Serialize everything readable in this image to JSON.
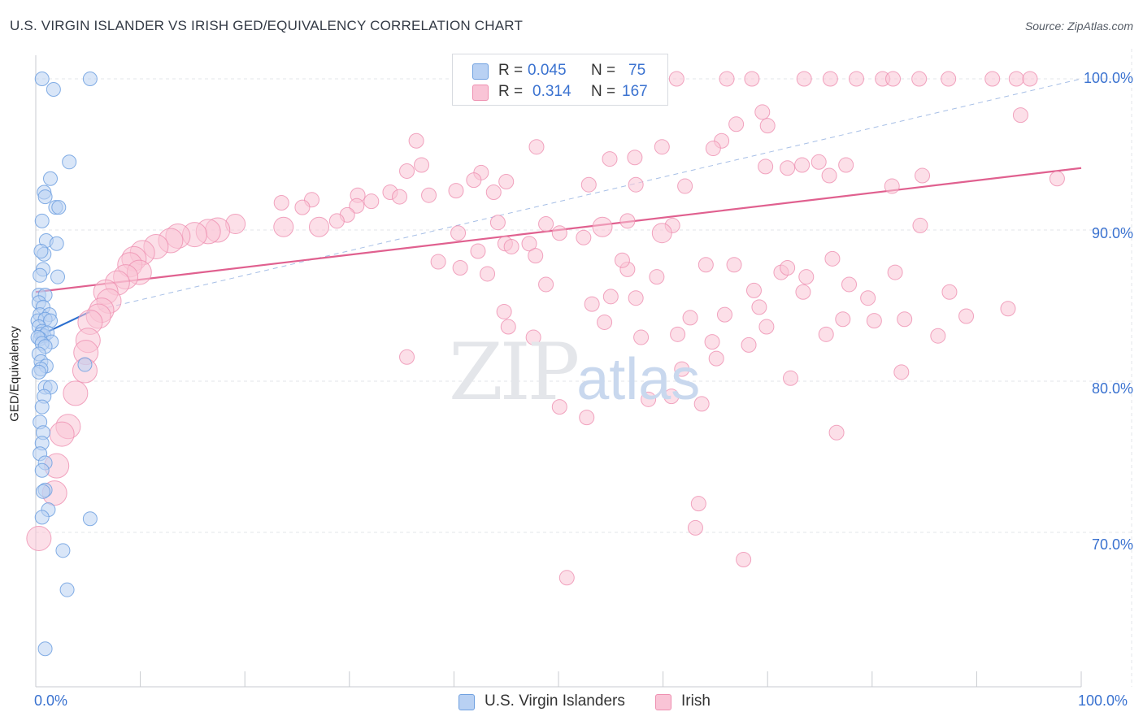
{
  "title": "U.S. VIRGIN ISLANDER VS IRISH GED/EQUIVALENCY CORRELATION CHART",
  "source": "Source: ZipAtlas.com",
  "watermark": {
    "zip": "ZIP",
    "atlas": "atlas"
  },
  "legend_top": [
    {
      "r_label": "R =",
      "r_value": "0.045",
      "n_label": "N =",
      "n_value": "75",
      "color": "#6fa0e0",
      "fill": "#b9d1f3"
    },
    {
      "r_label": "R =",
      "r_value": "0.314",
      "n_label": "N =",
      "n_value": "167",
      "color": "#ee8fb0",
      "fill": "#f9c4d6"
    }
  ],
  "chart_data": {
    "type": "scatter",
    "title": "U.S. VIRGIN ISLANDER VS IRISH GED/EQUIVALENCY CORRELATION CHART",
    "xlabel": "",
    "ylabel": "GED/Equivalency",
    "xlim": [
      0,
      100
    ],
    "ylim": [
      60.5,
      101.5
    ],
    "x_tick_labels": [
      "0.0%",
      "100.0%"
    ],
    "y_ticks": [
      70,
      80,
      90,
      100
    ],
    "y_tick_labels": [
      "70.0%",
      "80.0%",
      "90.0%",
      "100.0%"
    ],
    "grid": true,
    "legend_position": "bottom",
    "series": [
      {
        "name": "U.S. Virgin Islanders",
        "color": "#6fa0e0",
        "fill": "#b9d1f3",
        "trend": {
          "x": [
            0,
            5.2
          ],
          "y": [
            82.9,
            84.6
          ],
          "color": "#2c6fcf"
        },
        "points": [
          [
            0.6,
            100.0
          ],
          [
            5.2,
            100.0
          ],
          [
            1.7,
            99.3
          ],
          [
            3.2,
            94.5
          ],
          [
            1.4,
            93.4
          ],
          [
            0.8,
            92.5
          ],
          [
            0.9,
            92.2
          ],
          [
            1.9,
            91.5
          ],
          [
            2.2,
            91.5
          ],
          [
            0.6,
            90.6
          ],
          [
            1.0,
            89.3
          ],
          [
            2.0,
            89.1
          ],
          [
            0.8,
            88.4
          ],
          [
            0.5,
            88.6
          ],
          [
            0.7,
            87.4
          ],
          [
            0.4,
            87.0
          ],
          [
            2.1,
            86.9
          ],
          [
            0.3,
            85.7
          ],
          [
            0.9,
            85.7
          ],
          [
            0.3,
            85.2
          ],
          [
            0.7,
            84.9
          ],
          [
            0.4,
            84.4
          ],
          [
            1.3,
            84.4
          ],
          [
            0.2,
            84.0
          ],
          [
            0.9,
            84.1
          ],
          [
            1.4,
            84.0
          ],
          [
            0.3,
            83.6
          ],
          [
            0.6,
            83.3
          ],
          [
            0.5,
            83.1
          ],
          [
            0.8,
            83.0
          ],
          [
            1.1,
            83.2
          ],
          [
            0.4,
            82.8
          ],
          [
            0.2,
            82.9
          ],
          [
            1.5,
            82.6
          ],
          [
            0.6,
            82.5
          ],
          [
            0.9,
            82.3
          ],
          [
            0.3,
            81.8
          ],
          [
            0.5,
            81.3
          ],
          [
            1.0,
            81.0
          ],
          [
            4.7,
            81.1
          ],
          [
            0.5,
            80.8
          ],
          [
            0.3,
            80.6
          ],
          [
            0.9,
            79.6
          ],
          [
            1.4,
            79.6
          ],
          [
            0.8,
            79.0
          ],
          [
            0.6,
            78.3
          ],
          [
            0.4,
            77.3
          ],
          [
            0.7,
            76.6
          ],
          [
            0.6,
            75.9
          ],
          [
            0.4,
            75.2
          ],
          [
            0.9,
            74.6
          ],
          [
            0.6,
            74.1
          ],
          [
            0.9,
            72.8
          ],
          [
            0.7,
            72.7
          ],
          [
            1.2,
            71.5
          ],
          [
            0.6,
            71.0
          ],
          [
            5.2,
            70.9
          ],
          [
            2.6,
            68.8
          ],
          [
            3.0,
            66.2
          ],
          [
            0.9,
            62.3
          ]
        ]
      },
      {
        "name": "Irish",
        "color": "#ee8fb0",
        "fill": "#f9c4d6",
        "trend": {
          "x": [
            0,
            100
          ],
          "y": [
            85.9,
            94.1
          ],
          "color": "#e0608f"
        },
        "points": [
          [
            61.3,
            100.0
          ],
          [
            66.1,
            100.0
          ],
          [
            68.5,
            100.0
          ],
          [
            73.5,
            100.0
          ],
          [
            76.0,
            100.0
          ],
          [
            78.5,
            100.0
          ],
          [
            81.0,
            100.0
          ],
          [
            82.0,
            100.0
          ],
          [
            84.5,
            100.0
          ],
          [
            87.3,
            100.0
          ],
          [
            91.5,
            100.0
          ],
          [
            93.8,
            100.0
          ],
          [
            95.1,
            100.0
          ],
          [
            69.5,
            97.8
          ],
          [
            94.2,
            97.6
          ],
          [
            67.0,
            97.0
          ],
          [
            70.0,
            96.9
          ],
          [
            36.4,
            95.9
          ],
          [
            65.6,
            95.9
          ],
          [
            47.9,
            95.5
          ],
          [
            59.9,
            95.5
          ],
          [
            64.8,
            95.4
          ],
          [
            54.9,
            94.7
          ],
          [
            57.3,
            94.8
          ],
          [
            74.9,
            94.5
          ],
          [
            77.5,
            94.3
          ],
          [
            69.8,
            94.2
          ],
          [
            36.9,
            94.3
          ],
          [
            35.5,
            93.9
          ],
          [
            42.6,
            93.8
          ],
          [
            71.9,
            94.1
          ],
          [
            73.3,
            94.3
          ],
          [
            75.9,
            93.6
          ],
          [
            84.8,
            93.6
          ],
          [
            97.7,
            93.4
          ],
          [
            41.9,
            93.3
          ],
          [
            45.0,
            93.2
          ],
          [
            52.9,
            93.0
          ],
          [
            57.4,
            93.0
          ],
          [
            62.1,
            92.9
          ],
          [
            81.9,
            92.9
          ],
          [
            33.9,
            92.5
          ],
          [
            40.2,
            92.6
          ],
          [
            43.8,
            92.5
          ],
          [
            37.6,
            92.3
          ],
          [
            34.8,
            92.2
          ],
          [
            32.1,
            91.9
          ],
          [
            30.8,
            92.3
          ],
          [
            26.4,
            92.0
          ],
          [
            23.5,
            91.8
          ],
          [
            25.5,
            91.5
          ],
          [
            30.7,
            91.6
          ],
          [
            29.8,
            91.0
          ],
          [
            28.8,
            90.6
          ],
          [
            48.8,
            90.4
          ],
          [
            56.6,
            90.6
          ],
          [
            44.2,
            90.5
          ],
          [
            84.6,
            90.3
          ],
          [
            60.9,
            90.3
          ],
          [
            54.2,
            90.2
          ],
          [
            59.9,
            89.8
          ],
          [
            27.1,
            90.2
          ],
          [
            23.7,
            90.2
          ],
          [
            19.1,
            90.4
          ],
          [
            17.4,
            90.0
          ],
          [
            16.5,
            89.9
          ],
          [
            15.2,
            89.7
          ],
          [
            13.6,
            89.6
          ],
          [
            12.9,
            89.3
          ],
          [
            11.5,
            88.9
          ],
          [
            10.2,
            88.5
          ],
          [
            9.4,
            88.1
          ],
          [
            9.0,
            87.7
          ],
          [
            9.9,
            87.2
          ],
          [
            8.6,
            86.9
          ],
          [
            7.8,
            86.5
          ],
          [
            6.7,
            85.9
          ],
          [
            7.0,
            85.3
          ],
          [
            6.3,
            84.7
          ],
          [
            6.0,
            84.3
          ],
          [
            5.2,
            83.9
          ],
          [
            5.0,
            82.7
          ],
          [
            4.8,
            81.9
          ],
          [
            4.7,
            80.7
          ],
          [
            3.8,
            79.2
          ],
          [
            3.1,
            77.0
          ],
          [
            2.5,
            76.5
          ],
          [
            2.0,
            74.4
          ],
          [
            1.8,
            72.6
          ],
          [
            0.3,
            69.6
          ],
          [
            40.4,
            89.8
          ],
          [
            44.9,
            89.1
          ],
          [
            47.2,
            89.1
          ],
          [
            50.1,
            89.8
          ],
          [
            52.4,
            89.5
          ],
          [
            45.5,
            88.9
          ],
          [
            47.8,
            88.3
          ],
          [
            48.8,
            86.4
          ],
          [
            40.6,
            87.5
          ],
          [
            43.2,
            87.1
          ],
          [
            56.6,
            87.4
          ],
          [
            64.1,
            87.7
          ],
          [
            71.3,
            87.2
          ],
          [
            76.2,
            88.1
          ],
          [
            71.9,
            87.5
          ],
          [
            73.7,
            86.9
          ],
          [
            82.2,
            87.2
          ],
          [
            55.0,
            85.6
          ],
          [
            53.2,
            85.1
          ],
          [
            69.2,
            84.9
          ],
          [
            65.9,
            84.4
          ],
          [
            77.2,
            84.1
          ],
          [
            83.1,
            84.1
          ],
          [
            89.0,
            84.3
          ],
          [
            61.4,
            83.1
          ],
          [
            64.7,
            82.6
          ],
          [
            68.2,
            82.4
          ],
          [
            75.6,
            83.1
          ],
          [
            45.2,
            83.6
          ],
          [
            47.6,
            82.9
          ],
          [
            61.8,
            80.8
          ],
          [
            72.2,
            80.2
          ],
          [
            82.8,
            80.6
          ],
          [
            44.8,
            84.6
          ],
          [
            57.4,
            85.5
          ],
          [
            65.1,
            81.5
          ],
          [
            60.8,
            79.0
          ],
          [
            63.7,
            78.5
          ],
          [
            50.1,
            78.3
          ],
          [
            76.6,
            76.6
          ],
          [
            58.6,
            78.8
          ],
          [
            52.7,
            77.6
          ],
          [
            63.4,
            71.9
          ],
          [
            63.1,
            70.3
          ],
          [
            67.7,
            68.2
          ],
          [
            50.8,
            67.0
          ],
          [
            35.5,
            81.6
          ],
          [
            77.8,
            86.4
          ],
          [
            86.3,
            83.0
          ],
          [
            93.0,
            84.8
          ],
          [
            38.5,
            87.9
          ],
          [
            42.3,
            88.6
          ],
          [
            56.1,
            88.0
          ],
          [
            59.4,
            86.9
          ],
          [
            66.8,
            87.7
          ],
          [
            68.7,
            86.0
          ],
          [
            80.2,
            84.0
          ],
          [
            73.4,
            85.9
          ],
          [
            79.6,
            85.5
          ],
          [
            87.4,
            85.9
          ],
          [
            54.4,
            83.9
          ],
          [
            57.9,
            82.9
          ],
          [
            62.6,
            84.2
          ],
          [
            69.9,
            83.6
          ]
        ]
      }
    ]
  }
}
